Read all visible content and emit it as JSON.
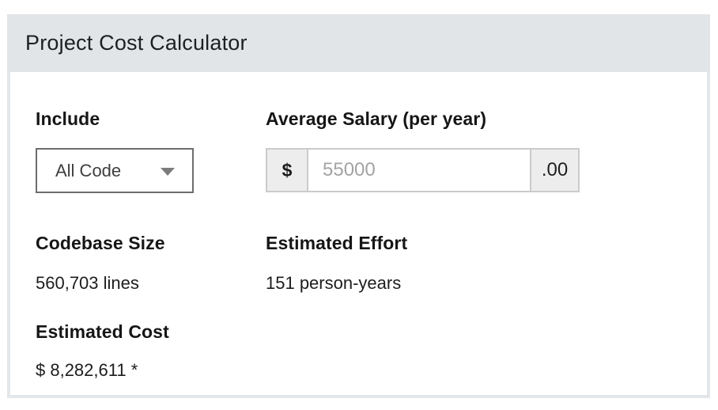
{
  "panel": {
    "title": "Project Cost Calculator"
  },
  "form": {
    "include": {
      "label": "Include",
      "selected_option": "All Code"
    },
    "salary": {
      "label": "Average Salary (per year)",
      "currency_prefix": "$",
      "placeholder": "55000",
      "decimal_suffix": ".00"
    }
  },
  "results": {
    "codebase_size": {
      "label": "Codebase Size",
      "value": "560,703 lines"
    },
    "estimated_effort": {
      "label": "Estimated Effort",
      "value": "151 person-years"
    },
    "estimated_cost": {
      "label": "Estimated Cost",
      "value": "$ 8,282,611 *"
    }
  },
  "colors": {
    "header_bg": "#e2e5e7",
    "panel_border": "#e4e7e9",
    "addon_bg": "#ededed",
    "input_border": "#cbcbcb",
    "select_border": "#6d6d6d",
    "placeholder_text": "#a3a3a3"
  }
}
